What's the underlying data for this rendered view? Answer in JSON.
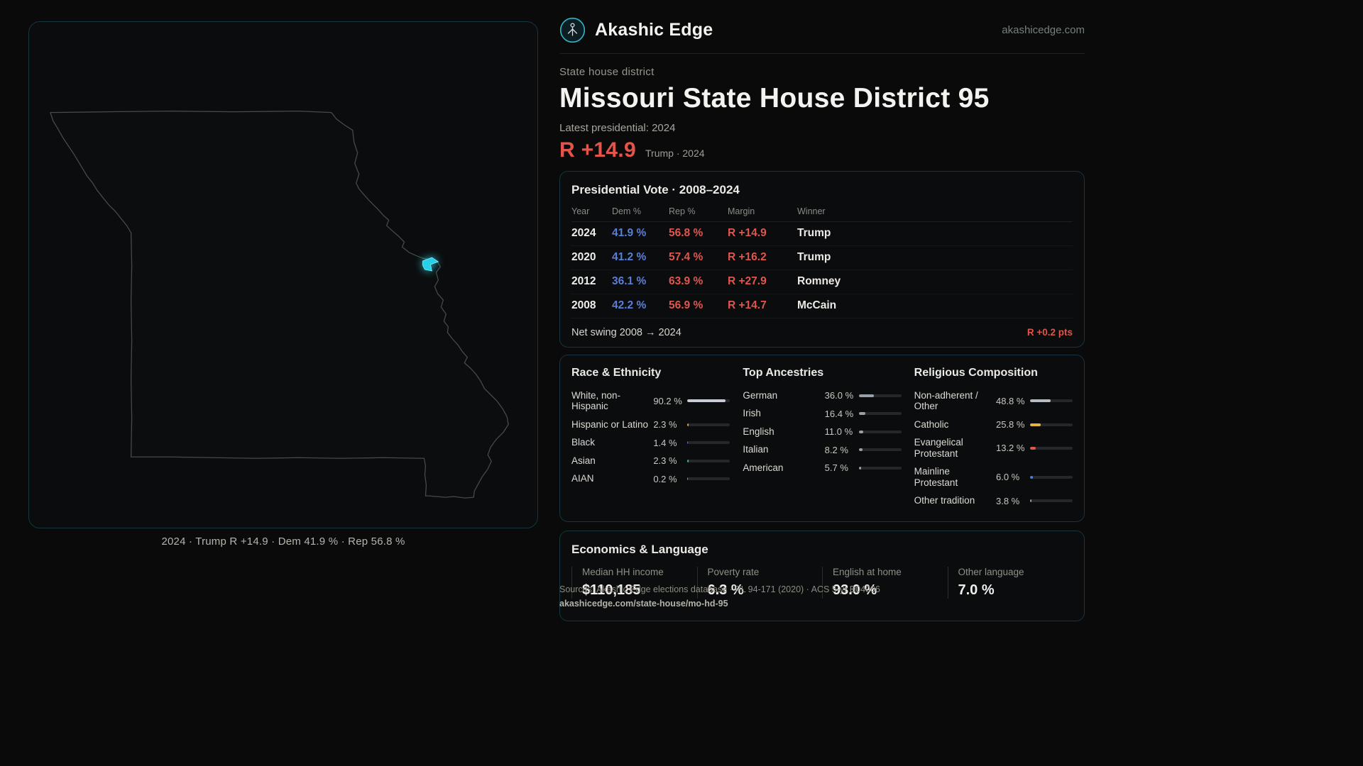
{
  "brand": {
    "name": "Akashic Edge",
    "domain": "akashicedge.com",
    "logo_icon": "akashic-circle-logo"
  },
  "header": {
    "kicker": "State house district",
    "title": "Missouri State House District 95",
    "latest_label": "Latest presidential: 2024",
    "margin_value": "R +14.9",
    "margin_context": "Trump · 2024"
  },
  "map": {
    "caption": "2024 · Trump R +14.9 · Dem 41.9 % · Rep 56.8 %",
    "district_icon": "highlighted-district-shape"
  },
  "presidential_vote": {
    "title": "Presidential Vote · 2008–2024",
    "columns": [
      "Year",
      "Dem %",
      "Rep %",
      "Margin",
      "Winner"
    ],
    "rows": [
      {
        "year": "2024",
        "dem": "41.9 %",
        "rep": "56.8 %",
        "margin": "R +14.9",
        "winner": "Trump"
      },
      {
        "year": "2020",
        "dem": "41.2 %",
        "rep": "57.4 %",
        "margin": "R +16.2",
        "winner": "Trump"
      },
      {
        "year": "2012",
        "dem": "36.1 %",
        "rep": "63.9 %",
        "margin": "R +27.9",
        "winner": "Romney"
      },
      {
        "year": "2008",
        "dem": "42.2 %",
        "rep": "56.9 %",
        "margin": "R +14.7",
        "winner": "McCain"
      }
    ],
    "net_swing_label": "Net swing 2008 → 2024",
    "net_swing_value": "R +0.2 pts"
  },
  "demographics": {
    "sections": [
      {
        "title": "Race & Ethnicity",
        "rows": [
          {
            "label": "White, non-Hispanic",
            "value": "90.2 %",
            "pct": 90.2,
            "color": "#c6cdd6"
          },
          {
            "label": "Hispanic or Latino",
            "value": "2.3 %",
            "pct": 2.3,
            "color": "#e59b3c"
          },
          {
            "label": "Black",
            "value": "1.4 %",
            "pct": 1.4,
            "color": "#6b78e0"
          },
          {
            "label": "Asian",
            "value": "2.3 %",
            "pct": 2.3,
            "color": "#2fbf8f"
          },
          {
            "label": "AIAN",
            "value": "0.2 %",
            "pct": 0.2,
            "color": "#9aa0a6"
          }
        ]
      },
      {
        "title": "Top Ancestries",
        "rows": [
          {
            "label": "German",
            "value": "36.0 %",
            "pct": 36.0,
            "color": "#99a0a7"
          },
          {
            "label": "Irish",
            "value": "16.4 %",
            "pct": 16.4,
            "color": "#99a0a7"
          },
          {
            "label": "English",
            "value": "11.0 %",
            "pct": 11.0,
            "color": "#99a0a7"
          },
          {
            "label": "Italian",
            "value": "8.2 %",
            "pct": 8.2,
            "color": "#99a0a7"
          },
          {
            "label": "American",
            "value": "5.7 %",
            "pct": 5.7,
            "color": "#99a0a7"
          }
        ]
      },
      {
        "title": "Religious Composition",
        "rows": [
          {
            "label": "Non-adherent / Other",
            "value": "48.8 %",
            "pct": 48.8,
            "color": "#b6bcc4"
          },
          {
            "label": "Catholic",
            "value": "25.8 %",
            "pct": 25.8,
            "color": "#e0b63e"
          },
          {
            "label": "Evangelical Protestant",
            "value": "13.2 %",
            "pct": 13.2,
            "color": "#e0564e"
          },
          {
            "label": "Mainline Protestant",
            "value": "6.0 %",
            "pct": 6.0,
            "color": "#4f7ce0"
          },
          {
            "label": "Other tradition",
            "value": "3.8 %",
            "pct": 3.8,
            "color": "#9aa0a6"
          }
        ]
      }
    ]
  },
  "economics": {
    "title": "Economics & Language",
    "stats": [
      {
        "label": "Median HH income",
        "value": "$110,185"
      },
      {
        "label": "Poverty rate",
        "value": "6.3 %"
      },
      {
        "label": "English at home",
        "value": "93.0 %"
      },
      {
        "label": "Other language",
        "value": "7.0 %"
      }
    ]
  },
  "footer": {
    "sources": "Sources: Akashic Edge elections database · PL 94-171 (2020) · ACS 5-yr B04006",
    "permalink": "akashicedge.com/state-house/mo-hd-95"
  },
  "colors": {
    "accent_red": "#e0564e",
    "dem_blue": "#5b7fd6",
    "district_cyan": "#25d0e8",
    "card_border": "#15363e",
    "background": "#0a0a0b"
  }
}
